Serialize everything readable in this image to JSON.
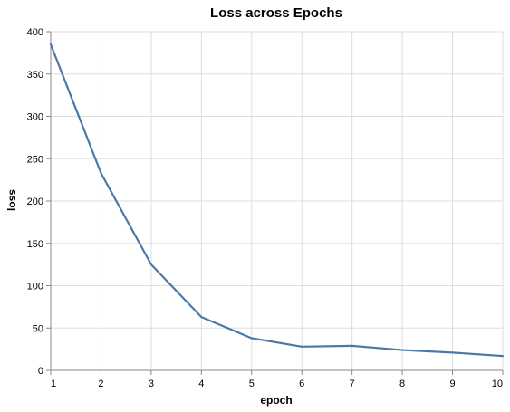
{
  "chart_data": {
    "type": "line",
    "title": "Loss across Epochs",
    "xlabel": "epoch",
    "ylabel": "loss",
    "x": [
      1,
      2,
      3,
      4,
      5,
      6,
      7,
      8,
      9,
      10
    ],
    "series": [
      {
        "values": [
          385,
          233,
          125,
          63,
          38,
          28,
          29,
          24,
          21,
          17
        ],
        "color": "#4c78a8"
      }
    ],
    "xlim": [
      1,
      10
    ],
    "ylim": [
      0,
      400
    ],
    "x_ticks": [
      1,
      2,
      3,
      4,
      5,
      6,
      7,
      8,
      9,
      10
    ],
    "y_ticks": [
      0,
      50,
      100,
      150,
      200,
      250,
      300,
      350,
      400
    ],
    "grid": true,
    "legend": "none"
  }
}
